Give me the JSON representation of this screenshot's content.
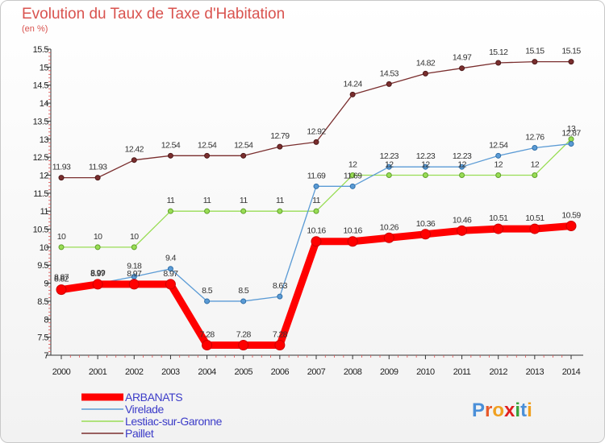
{
  "header": {
    "title": "Evolution du Taux de Taxe d'Habitation",
    "subtitle": "(en %)"
  },
  "logo": {
    "text": "Proxiti"
  },
  "chart_data": {
    "type": "line",
    "title": "Evolution du Taux de Taxe d'Habitation",
    "ylabel": "(en %)",
    "xlabel": "",
    "x": [
      "2000",
      "2001",
      "2002",
      "2003",
      "2004",
      "2005",
      "2006",
      "2007",
      "2008",
      "2009",
      "2010",
      "2011",
      "2012",
      "2013",
      "2014"
    ],
    "ylim": [
      7,
      15.5
    ],
    "yticks": [
      7,
      7.5,
      8,
      8.5,
      9,
      9.5,
      10,
      10.5,
      11,
      11.5,
      12,
      12.5,
      13,
      13.5,
      14,
      14.5,
      15,
      15.5
    ],
    "grid": false,
    "legend": "bottom-left",
    "series": [
      {
        "name": "ARBANATS",
        "color": "#ff0000",
        "values": [
          8.82,
          8.97,
          8.97,
          8.97,
          7.28,
          7.28,
          7.28,
          10.16,
          10.16,
          10.26,
          10.36,
          10.46,
          10.51,
          10.51,
          10.59
        ]
      },
      {
        "name": "Virelade",
        "color": "#5b9bd5",
        "values": [
          8.87,
          8.99,
          9.18,
          9.4,
          8.5,
          8.5,
          8.63,
          11.69,
          11.69,
          12.23,
          12.23,
          12.23,
          12.54,
          12.76,
          12.87
        ]
      },
      {
        "name": "Lestiac-sur-Garonne",
        "color": "#99dd55",
        "values": [
          10,
          10,
          10,
          11,
          11,
          11,
          11,
          11,
          12,
          12,
          12,
          12,
          12,
          12,
          13
        ]
      },
      {
        "name": "Paillet",
        "color": "#7a2e2e",
        "values": [
          11.93,
          11.93,
          12.42,
          12.54,
          12.54,
          12.54,
          12.79,
          12.92,
          14.24,
          14.53,
          14.82,
          14.97,
          15.12,
          15.15,
          15.15
        ]
      }
    ],
    "data_labels": [
      [
        "8.82",
        "8.97",
        "8.97",
        "8.97",
        "7.28",
        "7.28",
        "7.28",
        "10.16",
        "10.16",
        "10.26",
        "10.36",
        "10.46",
        "10.51",
        "10.51",
        "10.59"
      ],
      [
        "8.87",
        "8.99",
        "9.18",
        "9.4",
        "8.5",
        "8.5",
        "8.63",
        "11.69",
        "11.69",
        "12.23",
        "12.23",
        "12.23",
        "12.54",
        "12.76",
        "12.87"
      ],
      [
        "10",
        "10",
        "10",
        "11",
        "11",
        "11",
        "11",
        "11",
        "12",
        "12",
        "12",
        "12",
        "12",
        "12",
        "13"
      ],
      [
        "11.93",
        "11.93",
        "12.42",
        "12.54",
        "12.54",
        "12.54",
        "12.79",
        "12.92",
        "14.24",
        "14.53",
        "14.82",
        "14.97",
        "15.12",
        "15.15",
        "15.15"
      ]
    ]
  }
}
